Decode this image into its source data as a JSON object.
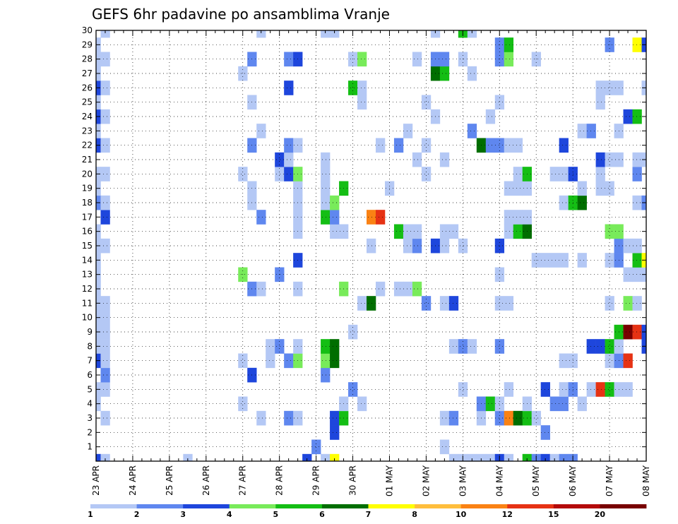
{
  "chart_data": {
    "type": "heatmap",
    "title": "GEFS 6hr padavine po ansamblima Vranje",
    "xlabel": "",
    "ylabel": "",
    "x_ticks": [
      "23 APR",
      "24 APR",
      "25 APR",
      "26 APR",
      "27 APR",
      "28 APR",
      "29 APR",
      "30 APR",
      "01 MAY",
      "02 MAY",
      "03 MAY",
      "04 MAY",
      "05 MAY",
      "06 MAY",
      "07 MAY",
      "08 MAY"
    ],
    "y_ticks": [
      1,
      2,
      3,
      4,
      5,
      6,
      7,
      8,
      9,
      10,
      11,
      12,
      13,
      14,
      15,
      16,
      17,
      18,
      19,
      20,
      21,
      22,
      23,
      24,
      25,
      26,
      27,
      28,
      29,
      30
    ],
    "ylim": [
      0,
      30
    ],
    "time_steps": 61,
    "steps_per_day": 4,
    "grid": "dotted",
    "legend_position": "bottom",
    "colorbar": {
      "labels": [
        "1",
        "2",
        "3",
        "4",
        "5",
        "6",
        "7",
        "8",
        "10",
        "12",
        "15",
        "20"
      ],
      "colors": [
        "#b4c8f5",
        "#5f87ef",
        "#1e46dc",
        "#78eb5a",
        "#14be14",
        "#006e00",
        "#ffff00",
        "#ffbe3c",
        "#fa8214",
        "#e63214",
        "#b40a0a",
        "#780000"
      ]
    },
    "cells": [
      [
        0,
        0,
        2
      ],
      [
        1,
        0,
        0
      ],
      [
        10,
        0,
        0
      ],
      [
        23,
        0,
        2
      ],
      [
        25,
        0,
        0
      ],
      [
        26,
        0,
        6
      ],
      [
        39,
        0,
        0
      ],
      [
        40,
        0,
        0
      ],
      [
        41,
        0,
        0
      ],
      [
        42,
        0,
        0
      ],
      [
        43,
        0,
        0
      ],
      [
        44,
        0,
        2
      ],
      [
        45,
        0,
        0
      ],
      [
        47,
        0,
        4
      ],
      [
        48,
        0,
        1
      ],
      [
        49,
        0,
        2
      ],
      [
        50,
        0,
        0
      ],
      [
        51,
        0,
        1
      ],
      [
        52,
        0,
        1
      ],
      [
        24,
        1,
        1
      ],
      [
        38,
        1,
        0
      ],
      [
        26,
        2,
        2
      ],
      [
        49,
        2,
        1
      ],
      [
        1,
        3,
        0
      ],
      [
        18,
        3,
        0
      ],
      [
        21,
        3,
        1
      ],
      [
        22,
        3,
        0
      ],
      [
        26,
        3,
        2
      ],
      [
        27,
        3,
        4
      ],
      [
        38,
        3,
        0
      ],
      [
        39,
        3,
        1
      ],
      [
        42,
        3,
        0
      ],
      [
        44,
        3,
        1
      ],
      [
        45,
        3,
        8
      ],
      [
        46,
        3,
        5
      ],
      [
        47,
        3,
        4
      ],
      [
        48,
        3,
        0
      ],
      [
        0,
        4,
        0
      ],
      [
        16,
        4,
        0
      ],
      [
        27,
        4,
        0
      ],
      [
        29,
        4,
        0
      ],
      [
        42,
        4,
        1
      ],
      [
        43,
        4,
        4
      ],
      [
        44,
        4,
        0
      ],
      [
        47,
        4,
        0
      ],
      [
        50,
        4,
        1
      ],
      [
        51,
        4,
        1
      ],
      [
        53,
        4,
        0
      ],
      [
        0,
        5,
        0
      ],
      [
        1,
        5,
        0
      ],
      [
        28,
        5,
        1
      ],
      [
        40,
        5,
        0
      ],
      [
        45,
        5,
        0
      ],
      [
        49,
        5,
        2
      ],
      [
        51,
        5,
        0
      ],
      [
        52,
        5,
        1
      ],
      [
        54,
        5,
        0
      ],
      [
        55,
        5,
        9
      ],
      [
        56,
        5,
        4
      ],
      [
        57,
        5,
        0
      ],
      [
        58,
        5,
        0
      ],
      [
        1,
        6,
        1
      ],
      [
        17,
        6,
        2
      ],
      [
        25,
        6,
        1
      ],
      [
        0,
        7,
        2
      ],
      [
        1,
        7,
        0
      ],
      [
        16,
        7,
        0
      ],
      [
        19,
        7,
        0
      ],
      [
        21,
        7,
        1
      ],
      [
        22,
        7,
        3
      ],
      [
        25,
        7,
        3
      ],
      [
        26,
        7,
        5
      ],
      [
        51,
        7,
        0
      ],
      [
        52,
        7,
        0
      ],
      [
        56,
        7,
        0
      ],
      [
        57,
        7,
        1
      ],
      [
        58,
        7,
        9
      ],
      [
        0,
        8,
        0
      ],
      [
        1,
        8,
        0
      ],
      [
        19,
        8,
        0
      ],
      [
        20,
        8,
        1
      ],
      [
        22,
        8,
        0
      ],
      [
        25,
        8,
        4
      ],
      [
        26,
        8,
        5
      ],
      [
        39,
        8,
        0
      ],
      [
        40,
        8,
        1
      ],
      [
        41,
        8,
        0
      ],
      [
        44,
        8,
        1
      ],
      [
        54,
        8,
        2
      ],
      [
        55,
        8,
        2
      ],
      [
        56,
        8,
        4
      ],
      [
        57,
        8,
        0
      ],
      [
        60,
        8,
        2
      ],
      [
        0,
        9,
        0
      ],
      [
        1,
        9,
        0
      ],
      [
        28,
        9,
        0
      ],
      [
        57,
        9,
        4
      ],
      [
        58,
        9,
        11
      ],
      [
        59,
        9,
        9
      ],
      [
        60,
        9,
        2
      ],
      [
        0,
        10,
        0
      ],
      [
        1,
        10,
        0
      ],
      [
        0,
        11,
        0
      ],
      [
        1,
        11,
        0
      ],
      [
        29,
        11,
        0
      ],
      [
        30,
        11,
        5
      ],
      [
        36,
        11,
        1
      ],
      [
        38,
        11,
        0
      ],
      [
        39,
        11,
        2
      ],
      [
        44,
        11,
        0
      ],
      [
        45,
        11,
        0
      ],
      [
        56,
        11,
        0
      ],
      [
        58,
        11,
        3
      ],
      [
        59,
        11,
        0
      ],
      [
        0,
        12,
        0
      ],
      [
        17,
        12,
        1
      ],
      [
        18,
        12,
        0
      ],
      [
        22,
        12,
        0
      ],
      [
        27,
        12,
        3
      ],
      [
        31,
        12,
        0
      ],
      [
        33,
        12,
        0
      ],
      [
        34,
        12,
        0
      ],
      [
        35,
        12,
        3
      ],
      [
        0,
        13,
        0
      ],
      [
        16,
        13,
        3
      ],
      [
        20,
        13,
        1
      ],
      [
        44,
        13,
        0
      ],
      [
        58,
        13,
        0
      ],
      [
        59,
        13,
        0
      ],
      [
        60,
        13,
        0
      ],
      [
        0,
        14,
        0
      ],
      [
        22,
        14,
        2
      ],
      [
        48,
        14,
        0
      ],
      [
        49,
        14,
        0
      ],
      [
        50,
        14,
        0
      ],
      [
        51,
        14,
        0
      ],
      [
        53,
        14,
        0
      ],
      [
        56,
        14,
        0
      ],
      [
        57,
        14,
        1
      ],
      [
        59,
        14,
        4
      ],
      [
        60,
        14,
        6
      ],
      [
        0,
        15,
        0
      ],
      [
        1,
        15,
        0
      ],
      [
        30,
        15,
        0
      ],
      [
        34,
        15,
        0
      ],
      [
        35,
        15,
        1
      ],
      [
        37,
        15,
        2
      ],
      [
        38,
        15,
        0
      ],
      [
        40,
        15,
        0
      ],
      [
        44,
        15,
        2
      ],
      [
        57,
        15,
        1
      ],
      [
        58,
        15,
        0
      ],
      [
        59,
        15,
        0
      ],
      [
        0,
        16,
        0
      ],
      [
        22,
        16,
        0
      ],
      [
        26,
        16,
        0
      ],
      [
        27,
        16,
        0
      ],
      [
        33,
        16,
        4
      ],
      [
        34,
        16,
        0
      ],
      [
        35,
        16,
        0
      ],
      [
        38,
        16,
        0
      ],
      [
        39,
        16,
        0
      ],
      [
        45,
        16,
        0
      ],
      [
        46,
        16,
        4
      ],
      [
        47,
        16,
        5
      ],
      [
        56,
        16,
        3
      ],
      [
        57,
        16,
        3
      ],
      [
        1,
        17,
        2
      ],
      [
        18,
        17,
        1
      ],
      [
        22,
        17,
        0
      ],
      [
        25,
        17,
        4
      ],
      [
        26,
        17,
        1
      ],
      [
        30,
        17,
        8
      ],
      [
        31,
        17,
        9
      ],
      [
        45,
        17,
        0
      ],
      [
        46,
        17,
        0
      ],
      [
        47,
        17,
        0
      ],
      [
        0,
        18,
        1
      ],
      [
        1,
        18,
        0
      ],
      [
        17,
        18,
        0
      ],
      [
        22,
        18,
        0
      ],
      [
        25,
        18,
        0
      ],
      [
        26,
        18,
        3
      ],
      [
        51,
        18,
        0
      ],
      [
        52,
        18,
        4
      ],
      [
        53,
        18,
        5
      ],
      [
        59,
        18,
        0
      ],
      [
        60,
        18,
        1
      ],
      [
        0,
        19,
        0
      ],
      [
        17,
        19,
        0
      ],
      [
        22,
        19,
        0
      ],
      [
        25,
        19,
        0
      ],
      [
        27,
        19,
        4
      ],
      [
        32,
        19,
        0
      ],
      [
        45,
        19,
        0
      ],
      [
        46,
        19,
        0
      ],
      [
        47,
        19,
        0
      ],
      [
        53,
        19,
        0
      ],
      [
        55,
        19,
        0
      ],
      [
        56,
        19,
        0
      ],
      [
        0,
        20,
        0
      ],
      [
        1,
        20,
        0
      ],
      [
        16,
        20,
        0
      ],
      [
        20,
        20,
        0
      ],
      [
        21,
        20,
        2
      ],
      [
        22,
        20,
        3
      ],
      [
        25,
        20,
        0
      ],
      [
        36,
        20,
        0
      ],
      [
        46,
        20,
        0
      ],
      [
        47,
        20,
        4
      ],
      [
        50,
        20,
        0
      ],
      [
        51,
        20,
        0
      ],
      [
        52,
        20,
        2
      ],
      [
        55,
        20,
        0
      ],
      [
        59,
        20,
        1
      ],
      [
        20,
        21,
        2
      ],
      [
        21,
        21,
        0
      ],
      [
        25,
        21,
        0
      ],
      [
        35,
        21,
        0
      ],
      [
        38,
        21,
        0
      ],
      [
        55,
        21,
        2
      ],
      [
        56,
        21,
        0
      ],
      [
        57,
        21,
        0
      ],
      [
        59,
        21,
        0
      ],
      [
        60,
        21,
        0
      ],
      [
        0,
        22,
        2
      ],
      [
        1,
        22,
        0
      ],
      [
        17,
        22,
        1
      ],
      [
        21,
        22,
        1
      ],
      [
        22,
        22,
        0
      ],
      [
        31,
        22,
        0
      ],
      [
        33,
        22,
        1
      ],
      [
        36,
        22,
        0
      ],
      [
        42,
        22,
        5
      ],
      [
        43,
        22,
        1
      ],
      [
        44,
        22,
        1
      ],
      [
        45,
        22,
        0
      ],
      [
        46,
        22,
        0
      ],
      [
        51,
        22,
        2
      ],
      [
        0,
        23,
        0
      ],
      [
        18,
        23,
        0
      ],
      [
        34,
        23,
        0
      ],
      [
        41,
        23,
        1
      ],
      [
        53,
        23,
        0
      ],
      [
        54,
        23,
        1
      ],
      [
        57,
        23,
        0
      ],
      [
        0,
        24,
        2
      ],
      [
        1,
        24,
        0
      ],
      [
        37,
        24,
        0
      ],
      [
        43,
        24,
        0
      ],
      [
        58,
        24,
        2
      ],
      [
        59,
        24,
        4
      ],
      [
        0,
        25,
        0
      ],
      [
        17,
        25,
        0
      ],
      [
        29,
        25,
        0
      ],
      [
        36,
        25,
        0
      ],
      [
        44,
        25,
        0
      ],
      [
        55,
        25,
        0
      ],
      [
        0,
        26,
        2
      ],
      [
        1,
        26,
        0
      ],
      [
        21,
        26,
        2
      ],
      [
        28,
        26,
        4
      ],
      [
        29,
        26,
        0
      ],
      [
        55,
        26,
        0
      ],
      [
        56,
        26,
        0
      ],
      [
        57,
        26,
        0
      ],
      [
        60,
        26,
        0
      ],
      [
        0,
        27,
        0
      ],
      [
        16,
        27,
        0
      ],
      [
        37,
        27,
        5
      ],
      [
        38,
        27,
        4
      ],
      [
        41,
        27,
        0
      ],
      [
        0,
        28,
        0
      ],
      [
        1,
        28,
        0
      ],
      [
        17,
        28,
        1
      ],
      [
        21,
        28,
        1
      ],
      [
        22,
        28,
        2
      ],
      [
        28,
        28,
        0
      ],
      [
        29,
        28,
        3
      ],
      [
        35,
        28,
        0
      ],
      [
        37,
        28,
        1
      ],
      [
        38,
        28,
        1
      ],
      [
        40,
        28,
        0
      ],
      [
        44,
        28,
        1
      ],
      [
        45,
        28,
        3
      ],
      [
        48,
        28,
        0
      ],
      [
        0,
        29,
        0
      ],
      [
        44,
        29,
        1
      ],
      [
        45,
        29,
        4
      ],
      [
        56,
        29,
        1
      ],
      [
        59,
        29,
        6
      ],
      [
        60,
        29,
        2
      ],
      [
        1,
        30,
        0
      ],
      [
        18,
        30,
        0
      ],
      [
        25,
        30,
        0
      ],
      [
        26,
        30,
        0
      ],
      [
        37,
        30,
        0
      ],
      [
        40,
        30,
        4
      ],
      [
        41,
        30,
        0
      ]
    ]
  }
}
